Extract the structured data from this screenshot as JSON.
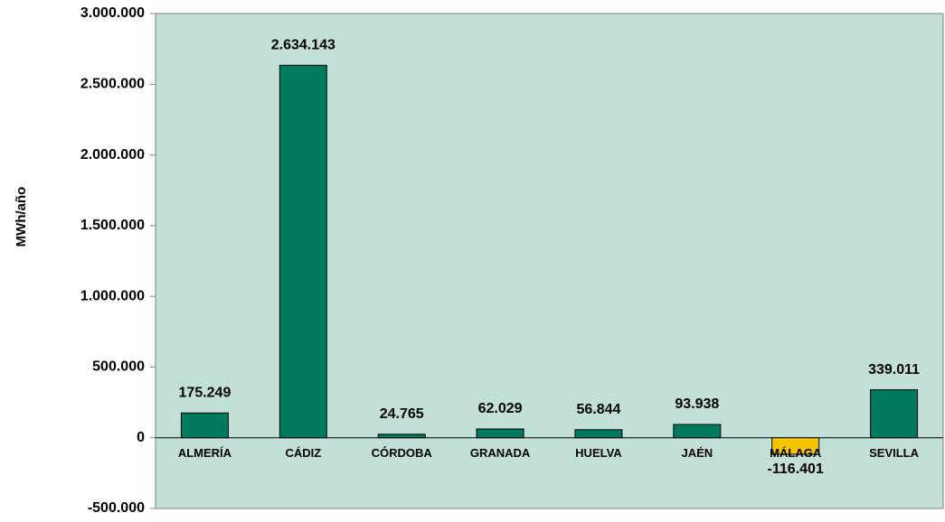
{
  "chart_data": {
    "type": "bar",
    "y_label": "MWh/año",
    "categories": [
      "ALMERÍA",
      "CÁDIZ",
      "CÓRDOBA",
      "GRANADA",
      "HUELVA",
      "JAÉN",
      "MÁLAGA",
      "SEVILLA"
    ],
    "values": [
      175249,
      2634143,
      24765,
      62029,
      56844,
      93938,
      -116401,
      339011
    ],
    "value_labels": [
      "175.249",
      "2.634.143",
      "24.765",
      "62.029",
      "56.844",
      "93.938",
      "-116.401",
      "339.011"
    ],
    "colors": [
      "#007a5e",
      "#007a5e",
      "#007a5e",
      "#007a5e",
      "#007a5e",
      "#007a5e",
      "#f5c400",
      "#007a5e"
    ],
    "ylim": [
      -500000,
      3000000
    ],
    "yticks": [
      {
        "value": -500000,
        "label": "-500.000"
      },
      0,
      {
        "value": 500000,
        "label": "500.000"
      },
      {
        "value": 1000000,
        "label": "1.000.000"
      },
      {
        "value": 1500000,
        "label": "1.500.000"
      },
      {
        "value": 2000000,
        "label": "2.000.000"
      },
      {
        "value": 2500000,
        "label": "2.500.000"
      },
      {
        "value": 3000000,
        "label": "3.000.000"
      }
    ],
    "grid": false
  }
}
